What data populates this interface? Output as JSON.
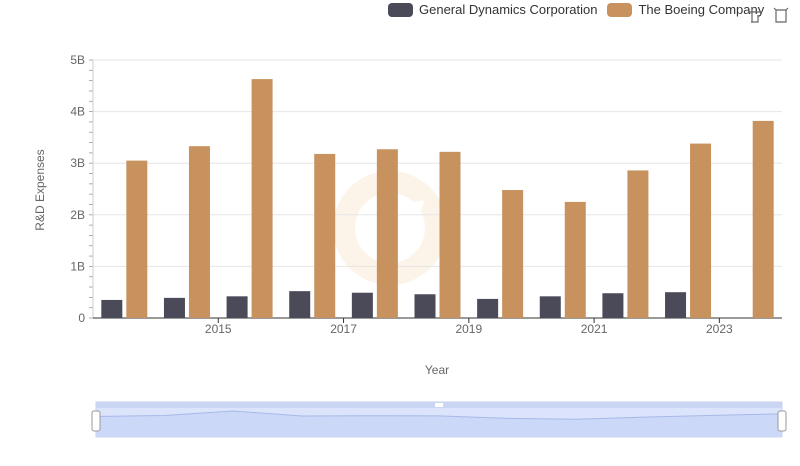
{
  "legend": {
    "items": [
      {
        "label": "General Dynamics Corporation",
        "color": "#4a4a58"
      },
      {
        "label": "The Boeing Company",
        "color": "#c8925e"
      }
    ]
  },
  "toolbar": {
    "icons": [
      "zoom-select-icon",
      "zoom-reset-icon"
    ]
  },
  "chart_data": {
    "type": "bar",
    "x": [
      2014,
      2015,
      2016,
      2017,
      2018,
      2019,
      2020,
      2021,
      2022,
      2023,
      2024
    ],
    "x_tick_labels": [
      "2015",
      "2017",
      "2019",
      "2021",
      "2023"
    ],
    "y_tick_labels": [
      "0",
      "1B",
      "2B",
      "3B",
      "4B",
      "5B"
    ],
    "ylim": [
      0,
      5000000000
    ],
    "xlabel": "Year",
    "ylabel": "R&D Expenses",
    "grid": true,
    "legend_position": "top-right",
    "series": [
      {
        "name": "General Dynamics Corporation",
        "color": "#4a4a58",
        "values": [
          350000000,
          390000000,
          420000000,
          520000000,
          490000000,
          460000000,
          370000000,
          420000000,
          480000000,
          500000000,
          null
        ]
      },
      {
        "name": "The Boeing Company",
        "color": "#c8925e",
        "values": [
          3050000000,
          3330000000,
          4630000000,
          3180000000,
          3270000000,
          3220000000,
          2480000000,
          2250000000,
          2860000000,
          3380000000,
          3820000000
        ]
      }
    ]
  }
}
